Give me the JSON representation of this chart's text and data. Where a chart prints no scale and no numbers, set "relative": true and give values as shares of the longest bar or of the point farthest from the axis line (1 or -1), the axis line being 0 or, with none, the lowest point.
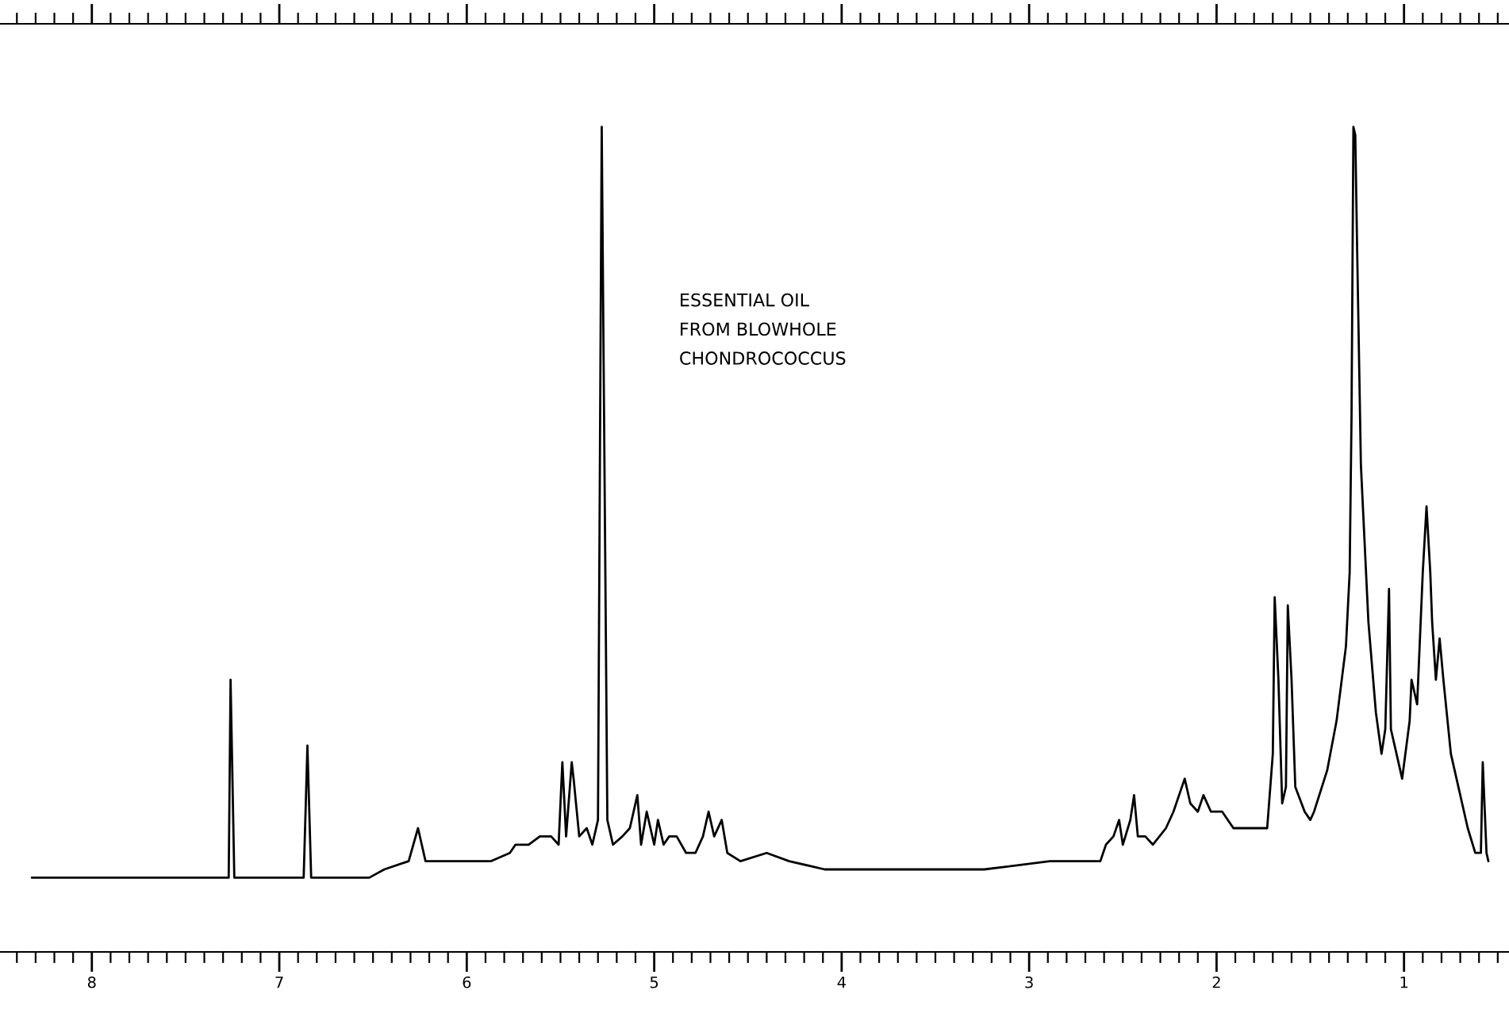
{
  "chart_data": {
    "type": "line",
    "relative": true,
    "line_style": "solid",
    "annotations": [
      "ESSENTIAL OIL\nFROM BLOWHOLE\nCHONDROCOCCUS"
    ],
    "xlim": [
      8.49,
      0.44
    ],
    "xticks": [
      8,
      7,
      6,
      5,
      4,
      3,
      2,
      1,
      {
        "value": 8.4,
        "label": null
      },
      {
        "value": 8.3,
        "label": null
      },
      {
        "value": 8.2,
        "label": null
      },
      {
        "value": 8.1,
        "label": null
      },
      {
        "value": 7.9,
        "label": null
      },
      {
        "value": 7.8,
        "label": null
      },
      {
        "value": 7.7,
        "label": null
      },
      {
        "value": 7.6,
        "label": null
      },
      {
        "value": 7.5,
        "label": null
      },
      {
        "value": 7.4,
        "label": null
      },
      {
        "value": 7.3,
        "label": null
      },
      {
        "value": 7.2,
        "label": null
      },
      {
        "value": 7.1,
        "label": null
      },
      {
        "value": 6.9,
        "label": null
      },
      {
        "value": 6.8,
        "label": null
      },
      {
        "value": 6.7,
        "label": null
      },
      {
        "value": 6.6,
        "label": null
      },
      {
        "value": 6.5,
        "label": null
      },
      {
        "value": 6.4,
        "label": null
      },
      {
        "value": 6.3,
        "label": null
      },
      {
        "value": 6.2,
        "label": null
      },
      {
        "value": 6.1,
        "label": null
      },
      {
        "value": 5.9,
        "label": null
      },
      {
        "value": 5.8,
        "label": null
      },
      {
        "value": 5.7,
        "label": null
      },
      {
        "value": 5.6,
        "label": null
      },
      {
        "value": 5.5,
        "label": null
      },
      {
        "value": 5.4,
        "label": null
      },
      {
        "value": 5.3,
        "label": null
      },
      {
        "value": 5.2,
        "label": null
      },
      {
        "value": 5.1,
        "label": null
      },
      {
        "value": 4.9,
        "label": null
      },
      {
        "value": 4.8,
        "label": null
      },
      {
        "value": 4.7,
        "label": null
      },
      {
        "value": 4.6,
        "label": null
      },
      {
        "value": 4.5,
        "label": null
      },
      {
        "value": 4.4,
        "label": null
      },
      {
        "value": 4.3,
        "label": null
      },
      {
        "value": 4.2,
        "label": null
      },
      {
        "value": 4.1,
        "label": null
      },
      {
        "value": 3.9,
        "label": null
      },
      {
        "value": 3.8,
        "label": null
      },
      {
        "value": 3.7,
        "label": null
      },
      {
        "value": 3.6,
        "label": null
      },
      {
        "value": 3.5,
        "label": null
      },
      {
        "value": 3.4,
        "label": null
      },
      {
        "value": 3.3,
        "label": null
      },
      {
        "value": 3.2,
        "label": null
      },
      {
        "value": 3.1,
        "label": null
      },
      {
        "value": 2.9,
        "label": null
      },
      {
        "value": 2.8,
        "label": null
      },
      {
        "value": 2.7,
        "label": null
      },
      {
        "value": 2.6,
        "label": null
      },
      {
        "value": 2.5,
        "label": null
      },
      {
        "value": 2.4,
        "label": null
      },
      {
        "value": 2.3,
        "label": null
      },
      {
        "value": 2.2,
        "label": null
      },
      {
        "value": 2.1,
        "label": null
      },
      {
        "value": 1.9,
        "label": null
      },
      {
        "value": 1.8,
        "label": null
      },
      {
        "value": 1.7,
        "label": null
      },
      {
        "value": 1.6,
        "label": null
      },
      {
        "value": 1.5,
        "label": null
      },
      {
        "value": 1.4,
        "label": null
      },
      {
        "value": 1.3,
        "label": null
      },
      {
        "value": 1.2,
        "label": null
      },
      {
        "value": 1.1,
        "label": null
      },
      {
        "value": 0.9,
        "label": null
      },
      {
        "value": 0.8,
        "label": null
      },
      {
        "value": 0.7,
        "label": null
      },
      {
        "value": 0.6,
        "label": null
      },
      {
        "value": 0.5,
        "label": null
      }
    ],
    "x": [
      8.32,
      7.31,
      7.27,
      7.26,
      7.24,
      6.93,
      6.87,
      6.85,
      6.83,
      6.52,
      6.44,
      6.31,
      6.26,
      6.22,
      6.18,
      6.12,
      6.01,
      5.87,
      5.77,
      5.74,
      5.67,
      5.61,
      5.55,
      5.51,
      5.49,
      5.47,
      5.44,
      5.43,
      5.4,
      5.36,
      5.33,
      5.3,
      5.28,
      5.25,
      5.22,
      5.17,
      5.13,
      5.09,
      5.07,
      5.04,
      5.0,
      4.98,
      4.95,
      4.92,
      4.88,
      4.83,
      4.78,
      4.74,
      4.71,
      4.68,
      4.64,
      4.61,
      4.54,
      4.4,
      4.28,
      4.09,
      3.69,
      3.24,
      2.89,
      2.73,
      2.62,
      2.59,
      2.55,
      2.52,
      2.5,
      2.46,
      2.44,
      2.42,
      2.38,
      2.34,
      2.27,
      2.23,
      2.17,
      2.14,
      2.1,
      2.07,
      2.03,
      1.97,
      1.91,
      1.8,
      1.73,
      1.7,
      1.69,
      1.67,
      1.65,
      1.63,
      1.62,
      1.6,
      1.58,
      1.53,
      1.5,
      1.48,
      1.41,
      1.36,
      1.31,
      1.29,
      1.28,
      1.27,
      1.26,
      1.25,
      1.23,
      1.19,
      1.15,
      1.12,
      1.1,
      1.08,
      1.07,
      1.04,
      1.01,
      0.97,
      0.96,
      0.93,
      0.9,
      0.88,
      0.86,
      0.85,
      0.83,
      0.81,
      0.79,
      0.75,
      0.7,
      0.66,
      0.62,
      0.59,
      0.58,
      0.56,
      0.55
    ],
    "series": [
      {
        "color": "#000000",
        "values": [
          0.09,
          0.09,
          0.09,
          0.33,
          0.09,
          0.09,
          0.09,
          0.25,
          0.09,
          0.09,
          0.1,
          0.11,
          0.15,
          0.11,
          0.11,
          0.11,
          0.11,
          0.11,
          0.12,
          0.13,
          0.13,
          0.14,
          0.14,
          0.13,
          0.23,
          0.14,
          0.23,
          0.21,
          0.14,
          0.15,
          0.13,
          0.16,
          1.0,
          0.16,
          0.13,
          0.14,
          0.15,
          0.19,
          0.13,
          0.17,
          0.13,
          0.16,
          0.13,
          0.14,
          0.14,
          0.12,
          0.12,
          0.14,
          0.17,
          0.14,
          0.16,
          0.12,
          0.11,
          0.12,
          0.11,
          0.1,
          0.1,
          0.1,
          0.11,
          0.11,
          0.11,
          0.13,
          0.14,
          0.16,
          0.13,
          0.16,
          0.19,
          0.14,
          0.14,
          0.13,
          0.15,
          0.17,
          0.21,
          0.18,
          0.17,
          0.19,
          0.17,
          0.17,
          0.15,
          0.15,
          0.15,
          0.24,
          0.43,
          0.33,
          0.18,
          0.2,
          0.42,
          0.33,
          0.2,
          0.17,
          0.16,
          0.17,
          0.22,
          0.28,
          0.37,
          0.46,
          0.65,
          1.0,
          0.99,
          0.85,
          0.59,
          0.4,
          0.29,
          0.24,
          0.27,
          0.44,
          0.27,
          0.24,
          0.21,
          0.28,
          0.33,
          0.3,
          0.46,
          0.54,
          0.46,
          0.4,
          0.33,
          0.38,
          0.33,
          0.24,
          0.19,
          0.15,
          0.12,
          0.12,
          0.23,
          0.12,
          0.11
        ]
      }
    ]
  }
}
